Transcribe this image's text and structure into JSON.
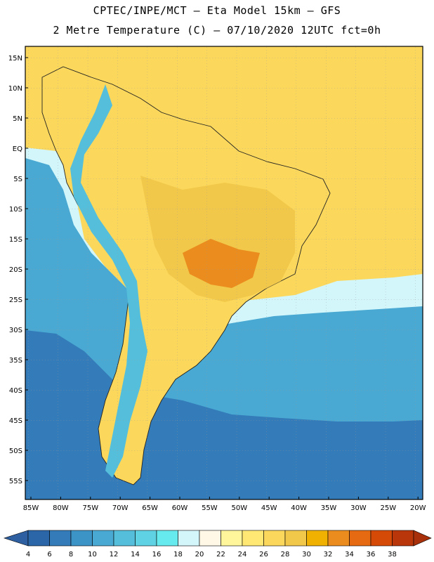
{
  "header": {
    "line1": "CPTEC/INPE/MCT –  Eta Model 15km – GFS",
    "line2": "2 Metre Temperature (C) – 07/10/2020 12UTC fct=0h"
  },
  "axes": {
    "lat_labels": [
      "15N",
      "10N",
      "5N",
      "EQ",
      "5S",
      "10S",
      "15S",
      "20S",
      "25S",
      "30S",
      "35S",
      "40S",
      "45S",
      "50S",
      "55S"
    ],
    "lon_labels": [
      "85W",
      "80W",
      "75W",
      "70W",
      "65W",
      "60W",
      "55W",
      "50W",
      "45W",
      "40W",
      "35W",
      "30W",
      "25W",
      "20W"
    ]
  },
  "colorbar": {
    "labels": [
      "4",
      "6",
      "8",
      "10",
      "12",
      "14",
      "16",
      "18",
      "20",
      "22",
      "24",
      "26",
      "28",
      "30",
      "32",
      "34",
      "36",
      "38"
    ],
    "colors": [
      "#2a66a8",
      "#347bb9",
      "#3c93c6",
      "#49a9d2",
      "#55bfdb",
      "#5fd3e4",
      "#66eaee",
      "#d3f6fb",
      "#fff8e6",
      "#fff59a",
      "#ffe873",
      "#fbd85c",
      "#f2c84a",
      "#f0b100",
      "#ea8c1e",
      "#e56a12",
      "#d64a08",
      "#b8360a"
    ],
    "below_color": "#2e5fa0",
    "above_color": "#a8300b"
  },
  "map_colors": {
    "land_hot": "#f2c84a",
    "land_warm": "#fbd85c",
    "land_hotspot": "#ea8c1e",
    "andes": "#55bfdb",
    "ocean_warm": "#fbd85c",
    "ocean_mild": "#d3f6fb",
    "ocean_cool": "#49a9d2",
    "ocean_cold": "#347bb9"
  }
}
